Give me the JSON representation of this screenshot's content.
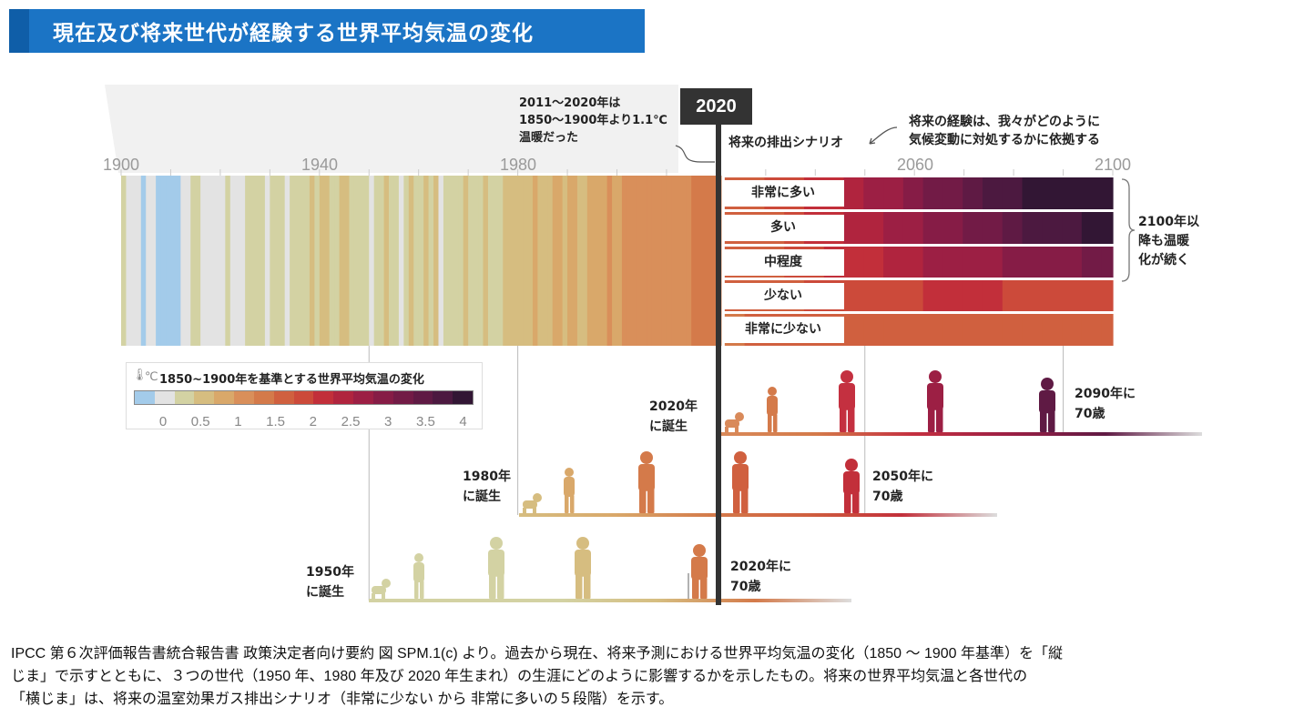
{
  "title": "現在及び将来世代が経験する世界平均気温の変化",
  "marker_year": "2020",
  "axis": {
    "ticks": [
      "1900",
      "1940",
      "1980",
      "2060",
      "2100"
    ],
    "range": [
      1900,
      2100
    ]
  },
  "annotations": {
    "past": [
      "2011〜2020年は",
      "1850〜1900年より1.1℃",
      "温暖だった"
    ],
    "scenario_heading": "将来の排出シナリオ",
    "future_note": [
      "将来の経験は、我々がどのように",
      "気候変動に対処するかに依拠する"
    ],
    "after_2100": [
      "2100年以",
      "降も温暖",
      "化が続く"
    ]
  },
  "legend": {
    "icon": "thermometer-icon",
    "unit": "℃",
    "title": "1850~1900年を基準とする世界平均気温の変化",
    "ticks": [
      "0",
      "0.5",
      "1",
      "1.5",
      "2",
      "2.5",
      "3",
      "3.5",
      "4"
    ],
    "colors": [
      "#a3cbea",
      "#e3e3e3",
      "#d3d2a3",
      "#d6bd80",
      "#d9a86a",
      "#d98f5a",
      "#d47a4a",
      "#d0603f",
      "#cc4a3a",
      "#c22f3a",
      "#b0243e",
      "#9c1f44",
      "#861c46",
      "#721b46",
      "#5f1a44",
      "#4c1940",
      "#321634"
    ],
    "color_min": -0.25,
    "color_step": 0.25
  },
  "historical_stripes": {
    "start_year": 1900,
    "values": [
      0.15,
      0.1,
      0.0,
      -0.1,
      -0.25,
      0.0,
      0.05,
      -0.2,
      -0.3,
      -0.3,
      -0.25,
      -0.2,
      0.0,
      0.05,
      0.2,
      0.25,
      0.0,
      -0.1,
      0.0,
      0.1,
      0.1,
      0.15,
      0.05,
      0.1,
      0.1,
      0.15,
      0.25,
      0.15,
      0.2,
      0.05,
      0.25,
      0.3,
      0.3,
      0.1,
      0.25,
      0.2,
      0.25,
      0.35,
      0.45,
      0.35,
      0.4,
      0.4,
      0.3,
      0.35,
      0.5,
      0.4,
      0.2,
      0.2,
      0.2,
      0.2,
      0.1,
      0.3,
      0.3,
      0.4,
      0.15,
      0.15,
      0.05,
      0.35,
      0.4,
      0.35,
      0.3,
      0.4,
      0.35,
      0.4,
      0.1,
      0.15,
      0.25,
      0.3,
      0.25,
      0.4,
      0.35,
      0.25,
      0.3,
      0.45,
      0.2,
      0.3,
      0.15,
      0.5,
      0.4,
      0.5,
      0.55,
      0.6,
      0.45,
      0.65,
      0.45,
      0.45,
      0.5,
      0.65,
      0.7,
      0.6,
      0.8,
      0.75,
      0.55,
      0.6,
      0.65,
      0.8,
      0.7,
      0.85,
      1.05,
      0.8,
      0.8,
      0.95,
      1.0,
      1.0,
      0.95,
      1.05,
      1.0,
      1.0,
      0.9,
      1.0,
      1.1,
      0.95,
      1.0,
      1.05,
      1.1,
      1.25,
      1.35,
      1.25,
      1.15,
      1.3,
      1.3
    ]
  },
  "scenarios": [
    {
      "label": "非常に多い",
      "values": [
        1.4,
        1.5,
        1.7,
        1.8,
        2.0,
        2.1,
        2.3,
        2.4,
        2.6,
        2.8,
        2.9,
        3.1,
        3.3,
        3.4,
        3.6,
        3.8,
        3.9,
        4.0,
        4.2,
        4.4
      ]
    },
    {
      "label": "多い",
      "values": [
        1.4,
        1.5,
        1.6,
        1.8,
        1.9,
        2.0,
        2.2,
        2.3,
        2.4,
        2.6,
        2.7,
        2.8,
        3.0,
        3.1,
        3.2,
        3.4,
        3.5,
        3.6,
        3.8,
        3.9
      ]
    },
    {
      "label": "中程度",
      "values": [
        1.4,
        1.5,
        1.6,
        1.7,
        1.8,
        1.9,
        2.0,
        2.1,
        2.2,
        2.3,
        2.4,
        2.5,
        2.55,
        2.6,
        2.7,
        2.75,
        2.8,
        2.85,
        2.9,
        2.95
      ]
    },
    {
      "label": "少ない",
      "values": [
        1.4,
        1.5,
        1.55,
        1.6,
        1.7,
        1.75,
        1.8,
        1.8,
        1.85,
        1.85,
        1.9,
        1.9,
        1.9,
        1.9,
        1.85,
        1.85,
        1.85,
        1.8,
        1.8,
        1.8
      ]
    },
    {
      "label": "非常に少ない",
      "values": [
        1.35,
        1.45,
        1.5,
        1.55,
        1.55,
        1.6,
        1.6,
        1.6,
        1.55,
        1.55,
        1.5,
        1.5,
        1.5,
        1.45,
        1.45,
        1.45,
        1.4,
        1.4,
        1.4,
        1.4
      ]
    }
  ],
  "scenario_period": [
    2021,
    2100
  ],
  "generations": [
    {
      "birth": [
        "2020年",
        "に誕生"
      ],
      "age70": [
        "2090年に",
        "70歳"
      ],
      "figure_colors": [
        "#d98a5a",
        "#d47a4a",
        "#c43040",
        "#9c1f44",
        "#5f1a44"
      ]
    },
    {
      "birth": [
        "1980年",
        "に誕生"
      ],
      "age70": [
        "2050年に",
        "70歳"
      ],
      "figure_colors": [
        "#d6bd80",
        "#d9a86a",
        "#d47a4a",
        "#d0603f",
        "#c22f3a"
      ]
    },
    {
      "birth": [
        "1950年",
        "に誕生"
      ],
      "age70": [
        "2020年に",
        "70歳"
      ],
      "figure_colors": [
        "#d3d2a3",
        "#d3d2a3",
        "#d3d2a3",
        "#d6bd80",
        "#d47a4a"
      ]
    }
  ],
  "caption": [
    "IPCC 第６次評価報告書統合報告書 政策決定者向け要約 図 SPM.1(c) より。過去から現在、将来予測における世界平均気温の変化（1850 ～ 1900 年基準）を「縦",
    "じま」で示すとともに、３つの世代（1950 年、1980 年及び 2020 年生まれ）の生涯にどのように影響するかを示したもの。将来の世界平均気温と各世代の",
    "「横じま」は、将来の温室効果ガス排出シナリオ（非常に少ない から 非常に多いの５段階）を示す。"
  ]
}
